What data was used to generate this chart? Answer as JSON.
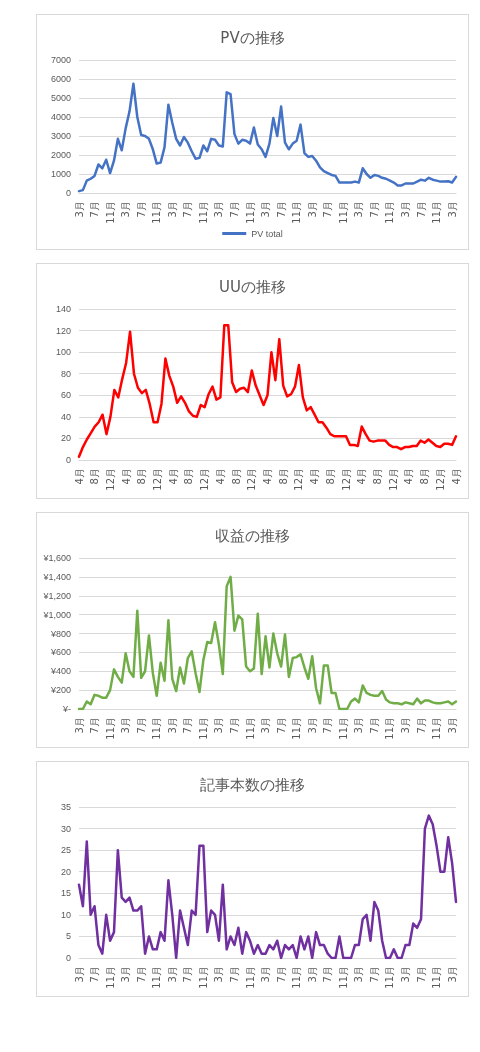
{
  "chart_data": [
    {
      "type": "line",
      "title": "PVの推移",
      "legend": "bottom",
      "grid": "y",
      "marker": "none",
      "line_style": "solid",
      "ylim": [
        0,
        7000
      ],
      "yticks": [
        0,
        1000,
        2000,
        3000,
        4000,
        5000,
        6000,
        7000
      ],
      "categories": [
        "3月",
        null,
        null,
        null,
        "7月",
        null,
        null,
        null,
        "11月",
        null,
        null,
        null,
        "3月",
        null,
        null,
        null,
        "7月",
        null,
        null,
        null,
        "11月",
        null,
        null,
        null,
        "3月",
        null,
        null,
        null,
        "7月",
        null,
        null,
        null,
        "11月",
        null,
        null,
        null,
        "3月",
        null,
        null,
        null,
        "7月",
        null,
        null,
        null,
        "11月",
        null,
        null,
        null,
        "3月",
        null,
        null,
        null,
        "7月",
        null,
        null,
        null,
        "11月",
        null,
        null,
        null,
        "3月",
        null,
        null,
        null,
        "7月",
        null,
        null,
        null,
        "11月",
        null,
        null,
        null,
        "3月",
        null,
        null,
        null,
        "7月",
        null,
        null,
        null,
        "11月",
        null,
        null,
        null,
        "3月",
        null,
        null,
        null,
        "7月",
        null,
        null,
        null,
        "11月",
        null,
        null,
        null,
        "3月",
        null
      ],
      "series": [
        {
          "name": "PV total",
          "color": "#4472c4",
          "values": [
            100,
            150,
            650,
            750,
            900,
            1500,
            1300,
            1750,
            1050,
            1700,
            2850,
            2250,
            3400,
            4300,
            5750,
            4000,
            3050,
            3000,
            2850,
            2300,
            1550,
            1600,
            2400,
            4650,
            3700,
            2850,
            2500,
            2950,
            2650,
            2200,
            1800,
            1850,
            2500,
            2200,
            2850,
            2800,
            2500,
            2450,
            5300,
            5200,
            3100,
            2600,
            2800,
            2750,
            2600,
            3450,
            2550,
            2300,
            1900,
            2600,
            3950,
            3000,
            4550,
            2650,
            2300,
            2600,
            2750,
            3600,
            2100,
            1900,
            1950,
            1700,
            1350,
            1150,
            1050,
            950,
            900,
            550,
            550,
            550,
            550,
            600,
            550,
            1300,
            1000,
            800,
            950,
            900,
            800,
            750,
            650,
            550,
            400,
            400,
            500,
            500,
            500,
            600,
            700,
            650,
            800,
            700,
            650,
            600,
            600,
            620,
            550,
            850
          ]
        }
      ]
    },
    {
      "type": "line",
      "title": "UUの推移",
      "legend": false,
      "grid": "y",
      "marker": "none",
      "line_style": "solid",
      "ylim": [
        0,
        140
      ],
      "yticks": [
        0,
        20,
        40,
        60,
        80,
        100,
        120,
        140
      ],
      "categories": [
        "4月",
        null,
        null,
        null,
        "8月",
        null,
        null,
        null,
        "12月",
        null,
        null,
        null,
        "4月",
        null,
        null,
        null,
        "8月",
        null,
        null,
        null,
        "12月",
        null,
        null,
        null,
        "4月",
        null,
        null,
        null,
        "8月",
        null,
        null,
        null,
        "12月",
        null,
        null,
        null,
        "4月",
        null,
        null,
        null,
        "8月",
        null,
        null,
        null,
        "12月",
        null,
        null,
        null,
        "4月",
        null,
        null,
        null,
        "8月",
        null,
        null,
        null,
        "12月",
        null,
        null,
        null,
        "4月",
        null,
        null,
        null,
        "8月",
        null,
        null,
        null,
        "12月",
        null,
        null,
        null,
        "4月",
        null,
        null,
        null,
        "8月",
        null,
        null,
        null,
        "12月",
        null,
        null,
        null,
        "4月",
        null,
        null,
        null,
        "8月",
        null,
        null,
        null,
        "12月",
        null,
        null,
        null,
        "4月"
      ],
      "series": [
        {
          "color": "#ff0000",
          "values": [
            3,
            12,
            19,
            25,
            31,
            35,
            42,
            24,
            40,
            65,
            58,
            75,
            90,
            119,
            80,
            67,
            62,
            65,
            52,
            35,
            35,
            52,
            94,
            78,
            68,
            53,
            59,
            53,
            45,
            41,
            40,
            51,
            49,
            61,
            68,
            56,
            58,
            125,
            125,
            72,
            63,
            66,
            67,
            63,
            83,
            69,
            60,
            51,
            60,
            100,
            74,
            112,
            69,
            59,
            61,
            68,
            88,
            58,
            46,
            49,
            42,
            35,
            35,
            30,
            24,
            22,
            22,
            22,
            22,
            14,
            14,
            13,
            31,
            24,
            18,
            17,
            18,
            18,
            18,
            14,
            12,
            12,
            10,
            12,
            12,
            13,
            13,
            18,
            16,
            19,
            16,
            13,
            12,
            15,
            15,
            14,
            22
          ]
        }
      ]
    },
    {
      "type": "line",
      "title": "収益の推移",
      "legend": false,
      "grid": "y",
      "marker": "none",
      "line_style": "solid",
      "ylim": [
        0,
        1600
      ],
      "yticks": [
        {
          "value": 0,
          "label": "¥-"
        },
        {
          "value": 200,
          "label": "¥200"
        },
        {
          "value": 400,
          "label": "¥400"
        },
        {
          "value": 600,
          "label": "¥600"
        },
        {
          "value": 800,
          "label": "¥800"
        },
        {
          "value": 1000,
          "label": "¥1,000"
        },
        {
          "value": 1200,
          "label": "¥1,200"
        },
        {
          "value": 1400,
          "label": "¥1,400"
        },
        {
          "value": 1600,
          "label": "¥1,600"
        }
      ],
      "categories": [
        "3月",
        null,
        null,
        null,
        "7月",
        null,
        null,
        null,
        "11月",
        null,
        null,
        null,
        "3月",
        null,
        null,
        null,
        "7月",
        null,
        null,
        null,
        "11月",
        null,
        null,
        null,
        "3月",
        null,
        null,
        null,
        "7月",
        null,
        null,
        null,
        "11月",
        null,
        null,
        null,
        "3月",
        null,
        null,
        null,
        "7月",
        null,
        null,
        null,
        "11月",
        null,
        null,
        null,
        "3月",
        null,
        null,
        null,
        "7月",
        null,
        null,
        null,
        "11月",
        null,
        null,
        null,
        "3月",
        null,
        null,
        null,
        "7月",
        null,
        null,
        null,
        "11月",
        null,
        null,
        null,
        "3月",
        null,
        null,
        null,
        "7月",
        null,
        null,
        null,
        "11月",
        null,
        null,
        null,
        "3月",
        null,
        null,
        null,
        "7月",
        null,
        null,
        null,
        "11月",
        null,
        null,
        null,
        "3月",
        null
      ],
      "series": [
        {
          "color": "#70ad47",
          "values": [
            0,
            0,
            80,
            50,
            150,
            140,
            120,
            120,
            200,
            420,
            340,
            280,
            590,
            400,
            340,
            1040,
            330,
            400,
            780,
            380,
            140,
            490,
            300,
            940,
            320,
            190,
            440,
            270,
            540,
            610,
            380,
            180,
            520,
            710,
            700,
            920,
            680,
            370,
            1300,
            1400,
            830,
            990,
            950,
            450,
            400,
            430,
            1010,
            370,
            770,
            440,
            800,
            590,
            450,
            790,
            340,
            540,
            550,
            580,
            440,
            320,
            560,
            220,
            60,
            460,
            460,
            170,
            170,
            0,
            0,
            0,
            80,
            110,
            70,
            250,
            170,
            150,
            140,
            140,
            190,
            100,
            70,
            60,
            60,
            50,
            70,
            60,
            50,
            110,
            60,
            90,
            90,
            70,
            60,
            60,
            70,
            80,
            50,
            80
          ]
        }
      ]
    },
    {
      "type": "line",
      "title": "記事本数の推移",
      "legend": false,
      "grid": "y",
      "marker": "none",
      "line_style": "solid",
      "ylim": [
        0,
        35
      ],
      "yticks": [
        0,
        5,
        10,
        15,
        20,
        25,
        30,
        35
      ],
      "categories": [
        "3月",
        null,
        null,
        null,
        "7月",
        null,
        null,
        null,
        "11月",
        null,
        null,
        null,
        "3月",
        null,
        null,
        null,
        "7月",
        null,
        null,
        null,
        "11月",
        null,
        null,
        null,
        "3月",
        null,
        null,
        null,
        "7月",
        null,
        null,
        null,
        "11月",
        null,
        null,
        null,
        "3月",
        null,
        null,
        null,
        "7月",
        null,
        null,
        null,
        "11月",
        null,
        null,
        null,
        "3月",
        null,
        null,
        null,
        "7月",
        null,
        null,
        null,
        "11月",
        null,
        null,
        null,
        "3月",
        null,
        null,
        null,
        "7月",
        null,
        null,
        null,
        "11月",
        null,
        null,
        null,
        "3月",
        null,
        null,
        null,
        "7月",
        null,
        null,
        null,
        "11月",
        null,
        null,
        null,
        "3月",
        null,
        null,
        null,
        "7月",
        null,
        null,
        null,
        "11月",
        null,
        null,
        null,
        "3月",
        null
      ],
      "series": [
        {
          "color": "#7030a0",
          "values": [
            17,
            12,
            27,
            10,
            12,
            3,
            1,
            10,
            4,
            6,
            25,
            14,
            13,
            14,
            11,
            11,
            12,
            1,
            5,
            2,
            2,
            6,
            4,
            18,
            10,
            0,
            11,
            7,
            3,
            11,
            10,
            26,
            26,
            6,
            11,
            10,
            4,
            17,
            2,
            5,
            3,
            7,
            1,
            6,
            4,
            1,
            3,
            1,
            1,
            3,
            2,
            4,
            0,
            3,
            2,
            3,
            0,
            5,
            2,
            5,
            0,
            6,
            3,
            3,
            1,
            0,
            0,
            5,
            0,
            0,
            0,
            3,
            3,
            9,
            10,
            4,
            13,
            11,
            4,
            0,
            0,
            2,
            0,
            0,
            3,
            3,
            8,
            7,
            9,
            30,
            33,
            31,
            26,
            20,
            20,
            28,
            22,
            13
          ]
        }
      ]
    }
  ]
}
